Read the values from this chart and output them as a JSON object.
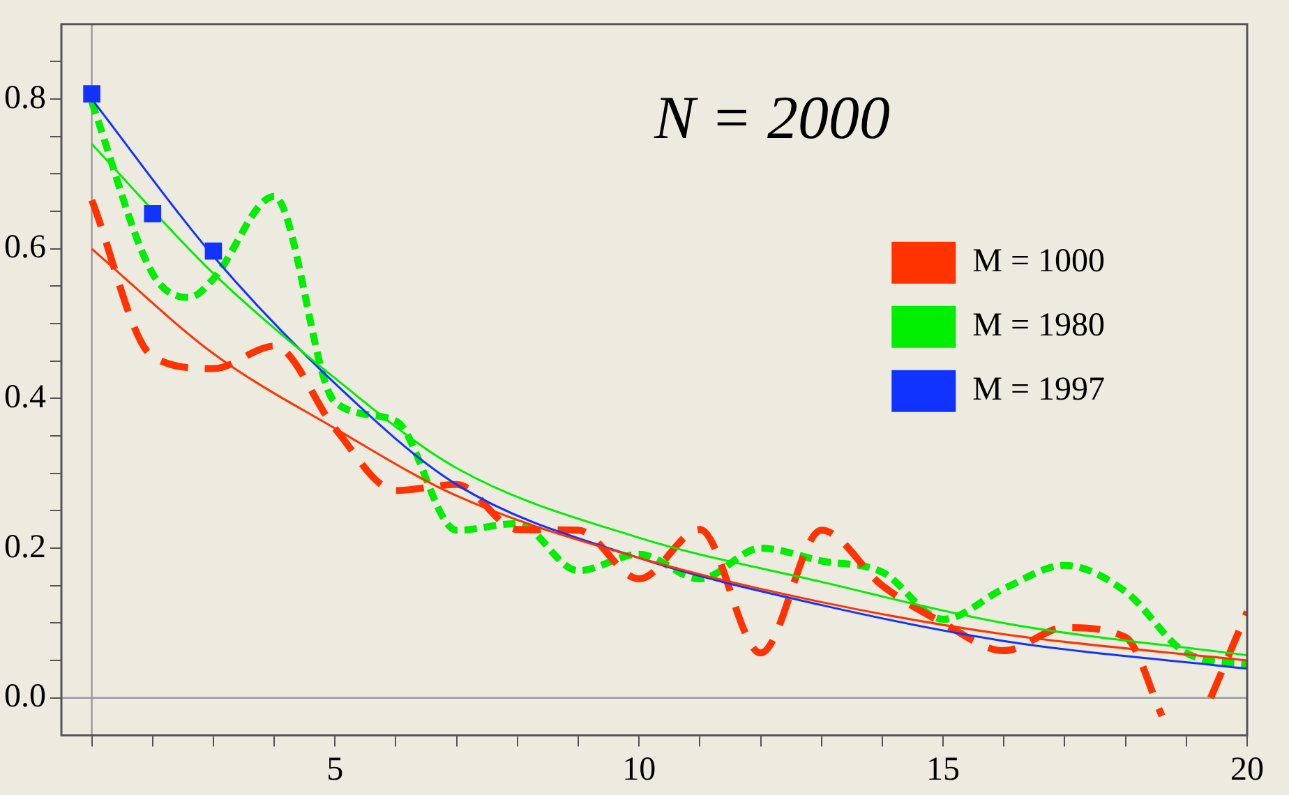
{
  "chart_data": {
    "type": "line",
    "annotations": [
      "N = 2000"
    ],
    "xlim": [
      0.5,
      20
    ],
    "ylim": [
      -0.05,
      0.9
    ],
    "xticks": [
      {
        "value": 1,
        "label": null
      },
      {
        "value": 2,
        "label": null
      },
      {
        "value": 3,
        "label": null
      },
      {
        "value": 4,
        "label": null
      },
      5,
      {
        "value": 6,
        "label": null
      },
      {
        "value": 7,
        "label": null
      },
      {
        "value": 8,
        "label": null
      },
      {
        "value": 9,
        "label": null
      },
      10,
      {
        "value": 11,
        "label": null
      },
      {
        "value": 12,
        "label": null
      },
      {
        "value": 13,
        "label": null
      },
      {
        "value": 14,
        "label": null
      },
      15,
      {
        "value": 16,
        "label": null
      },
      {
        "value": 17,
        "label": null
      },
      {
        "value": 18,
        "label": null
      },
      {
        "value": 19,
        "label": null
      },
      20
    ],
    "yticks": [
      {
        "value": 0,
        "label": "0.0"
      },
      {
        "value": 0.05,
        "label": null
      },
      {
        "value": 0.1,
        "label": null
      },
      {
        "value": 0.15,
        "label": null
      },
      {
        "value": 0.2,
        "label": "0.2"
      },
      {
        "value": 0.25,
        "label": null
      },
      {
        "value": 0.3,
        "label": null
      },
      {
        "value": 0.35,
        "label": null
      },
      {
        "value": 0.4,
        "label": "0.4"
      },
      {
        "value": 0.45,
        "label": null
      },
      {
        "value": 0.5,
        "label": null
      },
      {
        "value": 0.55,
        "label": null
      },
      {
        "value": 0.6,
        "label": "0.6"
      },
      {
        "value": 0.65,
        "label": null
      },
      {
        "value": 0.7,
        "label": null
      },
      {
        "value": 0.75,
        "label": null
      },
      {
        "value": 0.8,
        "label": "0.8"
      },
      {
        "value": 0.85,
        "label": null
      }
    ],
    "grid": false,
    "legend": "top right",
    "ref_lines": [
      {
        "axis": "y",
        "value": 0,
        "color": "#999999"
      },
      {
        "axis": "x",
        "value": 1,
        "color": "#999999"
      }
    ],
    "series": [
      {
        "type": "line",
        "color": "#ff3300",
        "line_style": "solid",
        "x": [
          1,
          3,
          5,
          7,
          10,
          13,
          16,
          20
        ],
        "values": [
          0.6,
          0.46,
          0.36,
          0.27,
          0.187,
          0.128,
          0.085,
          0.05
        ]
      },
      {
        "type": "line",
        "color": "#00ee00",
        "line_style": "solid",
        "x": [
          1,
          3,
          5,
          7,
          10,
          13,
          16,
          20
        ],
        "values": [
          0.74,
          0.567,
          0.427,
          0.307,
          0.214,
          0.155,
          0.1,
          0.057
        ]
      },
      {
        "type": "line",
        "color": "#1133ff",
        "line_style": "solid",
        "x": [
          1,
          3,
          5,
          7,
          10,
          13,
          16,
          20
        ],
        "values": [
          0.8,
          0.59,
          0.42,
          0.285,
          0.187,
          0.124,
          0.076,
          0.039
        ]
      },
      {
        "type": "line",
        "name": "M = 1000",
        "color": "#ff3300",
        "line_style": "dashed",
        "x": [
          1,
          2,
          3,
          4,
          5,
          6,
          7,
          8,
          9,
          10,
          11,
          12,
          13,
          14,
          15,
          16,
          17,
          18,
          18.6,
          19,
          19.4,
          20
        ],
        "values": [
          0.665,
          0.456,
          0.44,
          0.47,
          0.36,
          0.277,
          0.285,
          0.225,
          0.224,
          0.159,
          0.225,
          0.06,
          0.224,
          0.15,
          0.1,
          0.063,
          0.094,
          0.081,
          -0.024,
          null,
          0.0,
          0.115
        ]
      },
      {
        "type": "line",
        "name": "M = 1980",
        "color": "#00ee00",
        "line_style": "dotted",
        "x": [
          1,
          2,
          2.6,
          3,
          4,
          5,
          6,
          7,
          8,
          9,
          10,
          11,
          12,
          13,
          14,
          15,
          16,
          17,
          18,
          19,
          20
        ],
        "values": [
          0.796,
          0.567,
          0.535,
          0.56,
          0.67,
          0.395,
          0.37,
          0.224,
          0.233,
          0.17,
          0.192,
          0.159,
          0.2,
          0.183,
          0.168,
          0.105,
          0.146,
          0.177,
          0.142,
          0.06,
          0.045
        ]
      },
      {
        "type": "scatter",
        "name": "M = 1997",
        "color": "#1133ff",
        "marker": "square",
        "x": [
          1,
          2,
          3
        ],
        "values": [
          0.807,
          0.647,
          0.597
        ]
      }
    ]
  }
}
